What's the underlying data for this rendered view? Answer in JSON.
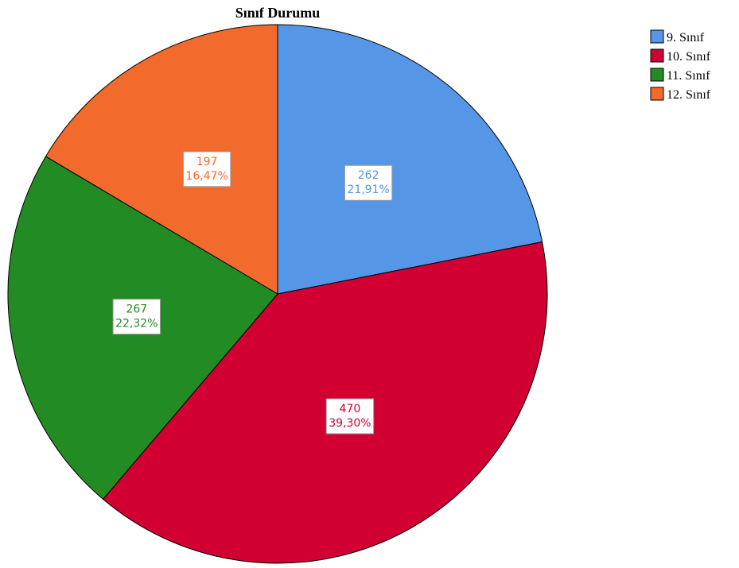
{
  "chart_data": {
    "type": "pie",
    "title": "Sınıf Durumu",
    "categories": [
      "9. Sınıf",
      "10. Sınıf",
      "11. Sınıf",
      "12. Sınıf"
    ],
    "values": [
      262,
      470,
      267,
      197
    ],
    "percent_values": [
      21.91,
      39.3,
      22.32,
      16.47
    ],
    "percent_labels": [
      "21,91%",
      "39,30%",
      "22,32%",
      "16,47%"
    ],
    "colors": [
      "#5596e6",
      "#d20032",
      "#238b23",
      "#f26a2c"
    ],
    "legend": "top-right"
  }
}
